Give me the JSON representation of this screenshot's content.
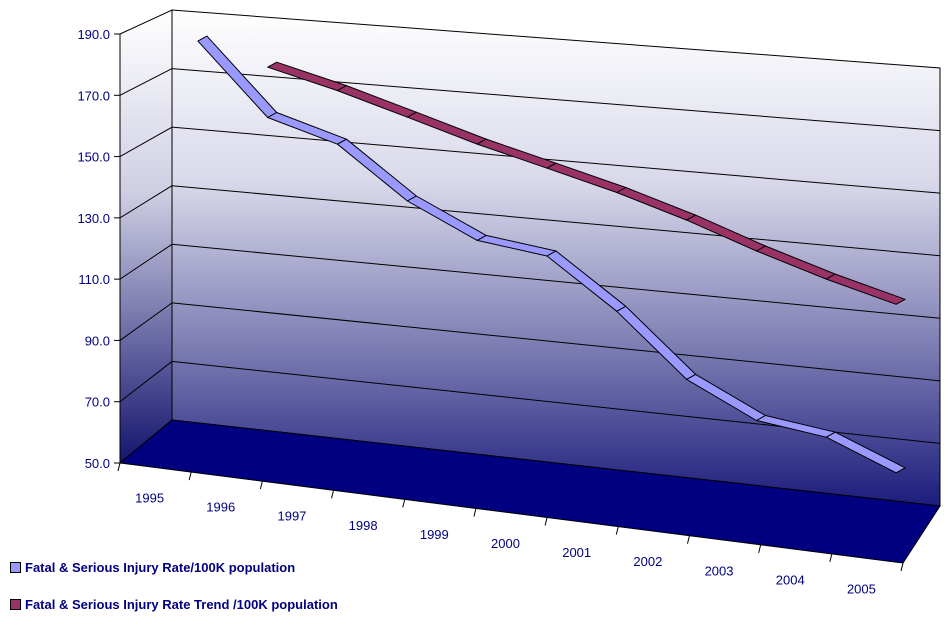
{
  "chart_data": {
    "type": "line",
    "title": "",
    "xlabel": "",
    "ylabel": "",
    "ylim": [
      50,
      190
    ],
    "yticks": [
      "50.0",
      "70.0",
      "90.0",
      "110.0",
      "130.0",
      "150.0",
      "170.0",
      "190.0"
    ],
    "categories": [
      "1995",
      "1996",
      "1997",
      "1998",
      "1999",
      "2000",
      "2001",
      "2002",
      "2003",
      "2004",
      "2005"
    ],
    "grid": true,
    "legend_position": "bottom-left",
    "series": [
      {
        "name": "Fatal & Serious Injury Rate/100K population",
        "color": "#9999ff",
        "values": [
          182,
          158,
          151,
          134,
          123,
          120,
          104,
          84,
          73,
          70,
          61
        ]
      },
      {
        "name": "Fatal & Serious Injury Rate Trend /100K population",
        "color": "#993366",
        "values": [
          null,
          175,
          169,
          162,
          155,
          149,
          143,
          136,
          128,
          121,
          115
        ]
      }
    ]
  }
}
